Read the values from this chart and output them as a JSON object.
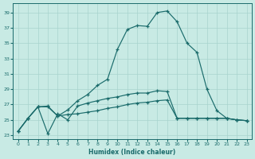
{
  "xlabel": "Humidex (Indice chaleur)",
  "xlim": [
    -0.5,
    23.5
  ],
  "ylim": [
    22.5,
    40.2
  ],
  "yticks": [
    23,
    25,
    27,
    29,
    31,
    33,
    35,
    37,
    39
  ],
  "xticks": [
    0,
    1,
    2,
    3,
    4,
    5,
    6,
    7,
    8,
    9,
    10,
    11,
    12,
    13,
    14,
    15,
    16,
    17,
    18,
    19,
    20,
    21,
    22,
    23
  ],
  "bg_color": "#c8eae4",
  "grid_color": "#a8d4ce",
  "line_color": "#1a6b6b",
  "line_main": [
    23.5,
    25.2,
    26.7,
    26.8,
    25.5,
    26.3,
    27.5,
    28.3,
    29.5,
    30.3,
    34.2,
    36.8,
    37.3,
    37.2,
    39.0,
    39.2,
    37.8,
    35.0,
    33.8,
    29.0,
    26.2,
    25.2,
    25.0,
    24.9
  ],
  "line_flat": [
    23.5,
    25.2,
    26.7,
    26.7,
    25.5,
    25.7,
    25.8,
    26.0,
    26.2,
    26.5,
    26.7,
    27.0,
    27.2,
    27.3,
    27.5,
    27.6,
    25.2,
    25.2,
    25.2,
    25.2,
    25.2,
    25.2,
    25.0,
    24.9
  ],
  "line_low": [
    23.5,
    25.2,
    26.7,
    23.2,
    25.8,
    25.0,
    26.8,
    27.2,
    27.5,
    27.8,
    28.0,
    28.3,
    28.5,
    28.5,
    28.8,
    28.7,
    25.2,
    25.2,
    25.2,
    25.2,
    25.2,
    25.2,
    25.0,
    24.9
  ]
}
